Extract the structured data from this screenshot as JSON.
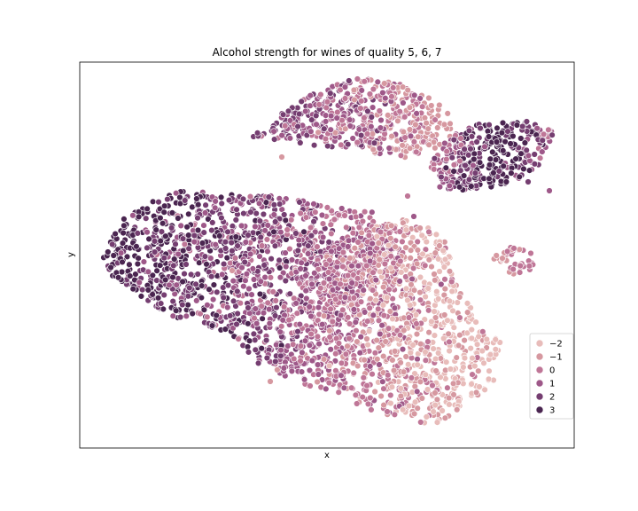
{
  "chart_data": {
    "type": "scatter",
    "title": "Alcohol strength for wines of quality 5, 6, 7",
    "xlabel": "x",
    "ylabel": "y",
    "grid": false,
    "x_ticks": "none",
    "y_ticks": "none",
    "legend": {
      "placement": "lower-right",
      "entries": [
        {
          "label": "−2",
          "color": "#e8bcba"
        },
        {
          "label": "−1",
          "color": "#d698a0"
        },
        {
          "label": "0",
          "color": "#bf7697"
        },
        {
          "label": "1",
          "color": "#9e5889"
        },
        {
          "label": "2",
          "color": "#753e71"
        },
        {
          "label": "3",
          "color": "#4a2550"
        }
      ]
    },
    "clusters": [
      {
        "name": "left-large",
        "hue_levels": [
          0,
          1,
          2,
          3
        ],
        "approx_points": 1400
      },
      {
        "name": "center-right-large",
        "hue_levels": [
          -2,
          -1,
          0,
          1
        ],
        "approx_points": 1100
      },
      {
        "name": "top-middle",
        "hue_levels": [
          -1,
          0,
          1,
          2
        ],
        "approx_points": 500
      },
      {
        "name": "top-right",
        "hue_levels": [
          0,
          1,
          2,
          3
        ],
        "approx_points": 350
      },
      {
        "name": "small-right",
        "hue_levels": [
          -1,
          0
        ],
        "approx_points": 40
      }
    ]
  },
  "colors": {
    "edge": "#ffffff",
    "frame": "#000000"
  }
}
